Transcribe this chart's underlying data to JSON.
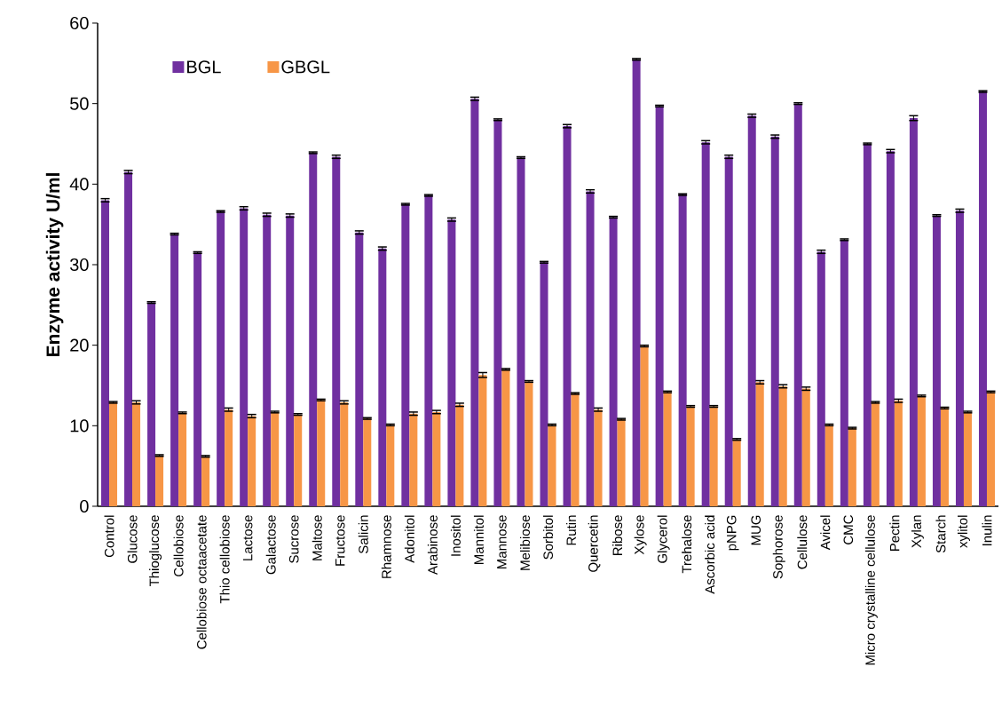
{
  "chart_data": {
    "type": "bar",
    "ylabel": "Enzyme activity U/ml",
    "categories": [
      "Control",
      "Glucose",
      "Thioglucose",
      "Cellobiose",
      "Cellobiose octaacetate",
      "Thio cellobiose",
      "Lactose",
      "Galactose",
      "Sucrose",
      "Maltose",
      "Fructose",
      "Salicin",
      "Rhamnose",
      "Adonitol",
      "Arabinose",
      "Inositol",
      "Mannitol",
      "Mannose",
      "Melibiose",
      "Sorbitol",
      "Rutin",
      "Quercetin",
      "Ribose",
      "Xylose",
      "Glycerol",
      "Trehalose",
      "Ascorbic acid",
      "pNPG",
      "MUG",
      "Sophorose",
      "Cellulose",
      "Avicel",
      "CMC",
      "Micro crystalline cellulose",
      "Pectin",
      "Xylan",
      "Starch",
      "xylitol",
      "Inulin"
    ],
    "series": [
      {
        "name": "BGL",
        "color": "#7030a0",
        "values": [
          38.0,
          41.5,
          25.3,
          33.8,
          31.5,
          36.6,
          37.0,
          36.2,
          36.1,
          43.9,
          43.4,
          34.0,
          32.0,
          37.5,
          38.6,
          35.6,
          50.6,
          48.0,
          43.3,
          30.3,
          47.2,
          39.1,
          35.9,
          55.5,
          49.7,
          38.7,
          45.2,
          43.4,
          48.5,
          45.9,
          50.0,
          31.6,
          33.1,
          45.0,
          44.1,
          48.2,
          36.1,
          36.7,
          51.5
        ],
        "errors": [
          0.2,
          0.2,
          0.1,
          0.1,
          0.1,
          0.1,
          0.2,
          0.2,
          0.2,
          0.1,
          0.2,
          0.2,
          0.2,
          0.1,
          0.1,
          0.2,
          0.2,
          0.1,
          0.1,
          0.1,
          0.2,
          0.2,
          0.1,
          0.1,
          0.1,
          0.1,
          0.2,
          0.2,
          0.2,
          0.2,
          0.1,
          0.2,
          0.1,
          0.1,
          0.2,
          0.3,
          0.1,
          0.2,
          0.1
        ]
      },
      {
        "name": "GBGL",
        "color": "#f79646",
        "values": [
          12.9,
          12.9,
          6.3,
          11.6,
          6.2,
          12.0,
          11.2,
          11.7,
          11.4,
          13.2,
          12.9,
          10.9,
          10.1,
          11.5,
          11.7,
          12.6,
          16.3,
          17.0,
          15.5,
          10.1,
          14.0,
          12.0,
          10.8,
          19.9,
          14.2,
          12.4,
          12.4,
          8.3,
          15.4,
          14.9,
          14.6,
          10.1,
          9.7,
          12.9,
          13.1,
          13.7,
          12.2,
          11.7,
          14.2
        ],
        "errors": [
          0.1,
          0.2,
          0.1,
          0.1,
          0.1,
          0.2,
          0.2,
          0.1,
          0.1,
          0.1,
          0.2,
          0.1,
          0.1,
          0.2,
          0.2,
          0.2,
          0.3,
          0.1,
          0.1,
          0.1,
          0.1,
          0.2,
          0.1,
          0.1,
          0.1,
          0.1,
          0.1,
          0.1,
          0.2,
          0.2,
          0.2,
          0.1,
          0.1,
          0.1,
          0.2,
          0.1,
          0.1,
          0.1,
          0.1
        ]
      }
    ],
    "ylim": [
      0,
      60
    ],
    "yticks": [
      0,
      10,
      20,
      30,
      40,
      50,
      60
    ],
    "legend": "top left"
  }
}
